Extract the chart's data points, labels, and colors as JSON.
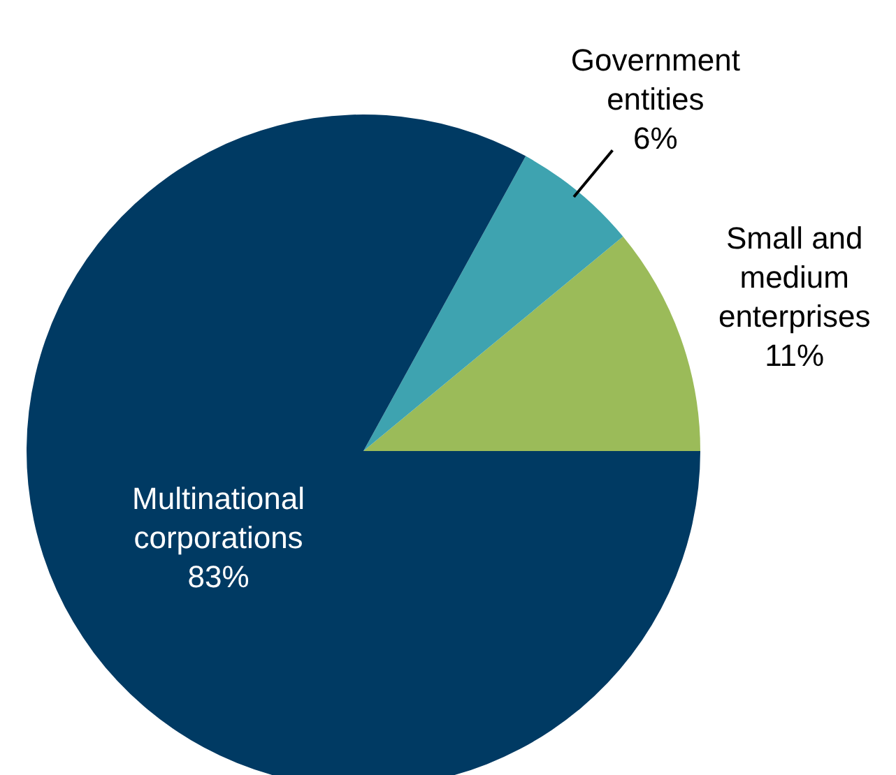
{
  "chart_data": {
    "type": "pie",
    "categories": [
      "Small and medium enterprises",
      "Government entities",
      "Multinational corporations"
    ],
    "values": [
      11,
      6,
      83
    ],
    "colors": [
      "#9bbb59",
      "#3ea3b0",
      "#003a63"
    ],
    "value_labels": [
      "11%",
      "6%",
      "83%"
    ]
  }
}
